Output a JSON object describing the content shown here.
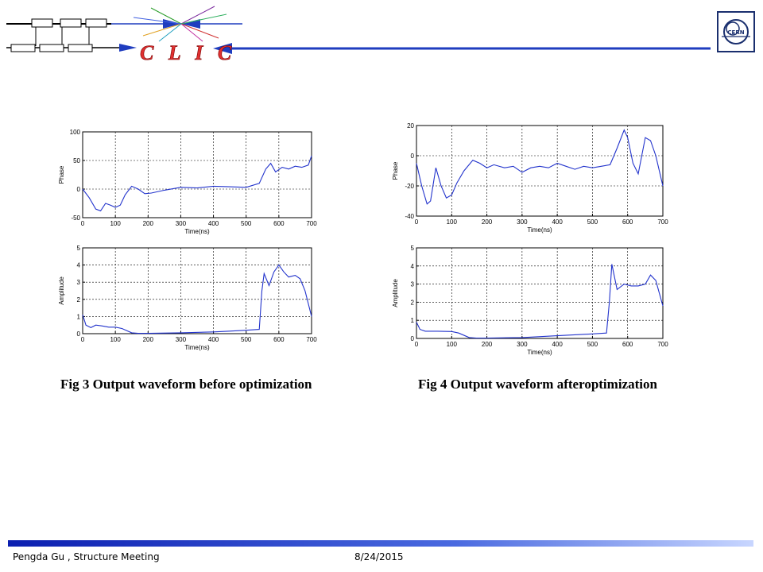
{
  "header": {
    "logo_text": "C L I C",
    "cern_logo_text": "CERN"
  },
  "colors": {
    "accent_blue": "#1f3dbf",
    "clic_red": "#e03030",
    "trace": "#2233cc"
  },
  "captions": {
    "fig3": "Fig 3 Output waveform before optimization",
    "fig4": "Fig 4 Output waveform afteroptimization"
  },
  "footer": {
    "author": "Pengda Gu , Structure Meeting",
    "date": "8/24/2015"
  },
  "chart_data": [
    {
      "id": "fig3-phase",
      "type": "line",
      "title": "",
      "xlabel": "Time(ns)",
      "ylabel": "Phase",
      "xlim": [
        0,
        700
      ],
      "ylim": [
        -50,
        100
      ],
      "xticks": [
        0,
        100,
        200,
        300,
        400,
        500,
        600,
        700
      ],
      "yticks": [
        -50,
        0,
        50,
        100
      ],
      "grid": true,
      "series": [
        {
          "x": [
            0,
            20,
            40,
            55,
            70,
            85,
            100,
            115,
            130,
            150,
            170,
            190,
            210,
            250,
            300,
            350,
            400,
            450,
            500,
            540,
            560,
            575,
            590,
            610,
            630,
            650,
            670,
            690,
            700
          ],
          "y": [
            0,
            -15,
            -35,
            -38,
            -25,
            -28,
            -32,
            -28,
            -10,
            5,
            0,
            -8,
            -7,
            -2,
            3,
            2,
            5,
            4,
            3,
            10,
            35,
            45,
            30,
            38,
            35,
            40,
            38,
            42,
            58
          ]
        }
      ]
    },
    {
      "id": "fig3-amplitude",
      "type": "line",
      "title": "",
      "xlabel": "Time(ns)",
      "ylabel": "Amplitude",
      "xlim": [
        0,
        700
      ],
      "ylim": [
        0,
        5
      ],
      "xticks": [
        0,
        100,
        200,
        300,
        400,
        500,
        600,
        700
      ],
      "yticks": [
        0,
        1,
        2,
        3,
        4,
        5
      ],
      "grid": true,
      "series": [
        {
          "x": [
            0,
            10,
            25,
            40,
            60,
            80,
            100,
            120,
            150,
            170,
            200,
            300,
            400,
            450,
            500,
            540,
            548,
            555,
            570,
            585,
            600,
            615,
            630,
            650,
            665,
            680,
            700
          ],
          "y": [
            1.1,
            0.5,
            0.35,
            0.5,
            0.45,
            0.38,
            0.38,
            0.3,
            0.05,
            0.02,
            0.02,
            0.05,
            0.1,
            0.15,
            0.2,
            0.25,
            2.5,
            3.5,
            2.8,
            3.6,
            4.0,
            3.6,
            3.3,
            3.4,
            3.2,
            2.5,
            1.0
          ]
        }
      ]
    },
    {
      "id": "fig4-phase",
      "type": "line",
      "title": "",
      "xlabel": "Time(ns)",
      "ylabel": "Phase",
      "xlim": [
        0,
        700
      ],
      "ylim": [
        -40,
        20
      ],
      "xticks": [
        0,
        100,
        200,
        300,
        400,
        500,
        600,
        700
      ],
      "yticks": [
        -40,
        -20,
        0,
        20
      ],
      "grid": true,
      "series": [
        {
          "x": [
            0,
            15,
            30,
            40,
            55,
            70,
            85,
            100,
            115,
            135,
            160,
            180,
            200,
            220,
            250,
            275,
            300,
            325,
            350,
            375,
            400,
            425,
            450,
            475,
            500,
            525,
            550,
            570,
            590,
            600,
            615,
            630,
            650,
            665,
            680,
            700
          ],
          "y": [
            -5,
            -20,
            -32,
            -30,
            -8,
            -20,
            -28,
            -26,
            -18,
            -10,
            -3,
            -5,
            -8,
            -6,
            -8,
            -7,
            -11,
            -8,
            -7,
            -8,
            -5,
            -7,
            -9,
            -7,
            -8,
            -7,
            -6,
            5,
            17,
            12,
            -5,
            -12,
            12,
            10,
            0,
            -20
          ]
        }
      ]
    },
    {
      "id": "fig4-amplitude",
      "type": "line",
      "title": "",
      "xlabel": "Time(ns)",
      "ylabel": "Amplitude",
      "xlim": [
        0,
        700
      ],
      "ylim": [
        0,
        5
      ],
      "xticks": [
        0,
        100,
        200,
        300,
        400,
        500,
        600,
        700
      ],
      "yticks": [
        0,
        1,
        2,
        3,
        4,
        5
      ],
      "grid": true,
      "series": [
        {
          "x": [
            0,
            10,
            25,
            60,
            100,
            120,
            150,
            170,
            200,
            300,
            400,
            450,
            500,
            540,
            548,
            555,
            570,
            590,
            610,
            630,
            650,
            665,
            680,
            700
          ],
          "y": [
            0.9,
            0.5,
            0.4,
            0.4,
            0.38,
            0.3,
            0.05,
            0.02,
            0.02,
            0.05,
            0.15,
            0.2,
            0.25,
            0.3,
            2.0,
            4.1,
            2.7,
            3.0,
            2.9,
            2.9,
            3.0,
            3.5,
            3.2,
            1.8
          ]
        }
      ]
    }
  ]
}
